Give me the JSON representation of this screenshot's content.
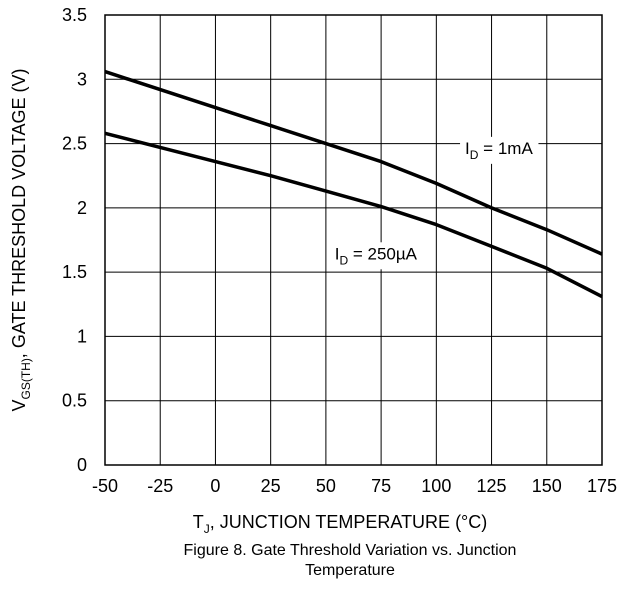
{
  "chart_data": {
    "type": "line",
    "xlabel": "Tⱼ, JUNCTION TEMPERATURE (°C)",
    "xlabel_main": "T",
    "xlabel_sub": "J",
    "xlabel_rest": ", JUNCTION TEMPERATURE (°C)",
    "ylabel": "Vᴳˢ⁽ᵀᴴ⁾, GATE THRESHOLD VOLTAGE (V)",
    "ylabel_main": "V",
    "ylabel_sub": "GS(TH)",
    "ylabel_rest": ", GATE THRESHOLD VOLTAGE (V)",
    "xlim": [
      -50,
      175
    ],
    "ylim": [
      0,
      3.5
    ],
    "x_ticks": [
      "-50",
      "-25",
      "0",
      "25",
      "50",
      "75",
      "100",
      "125",
      "150",
      "175"
    ],
    "y_ticks": [
      "0",
      "0.5",
      "1",
      "1.5",
      "2",
      "2.5",
      "3",
      "3.5"
    ],
    "grid": true,
    "series": [
      {
        "name": "I_D = 1mA",
        "label_main": "I",
        "label_sub": "D",
        "label_rest": " = 1mA",
        "x": [
          -50,
          -25,
          0,
          25,
          50,
          75,
          100,
          125,
          150,
          175
        ],
        "y": [
          3.06,
          2.92,
          2.78,
          2.64,
          2.5,
          2.36,
          2.19,
          2.0,
          1.83,
          1.64
        ]
      },
      {
        "name": "I_D = 250µA",
        "label_main": "I",
        "label_sub": "D",
        "label_rest": " = 250µA",
        "x": [
          -50,
          -25,
          0,
          25,
          50,
          75,
          100,
          125,
          150,
          175
        ],
        "y": [
          2.58,
          2.47,
          2.36,
          2.25,
          2.13,
          2.01,
          1.87,
          1.7,
          1.53,
          1.31
        ]
      }
    ]
  },
  "caption": {
    "line1": "Figure 8. Gate Threshold Variation vs. Junction",
    "line2": "Temperature"
  }
}
